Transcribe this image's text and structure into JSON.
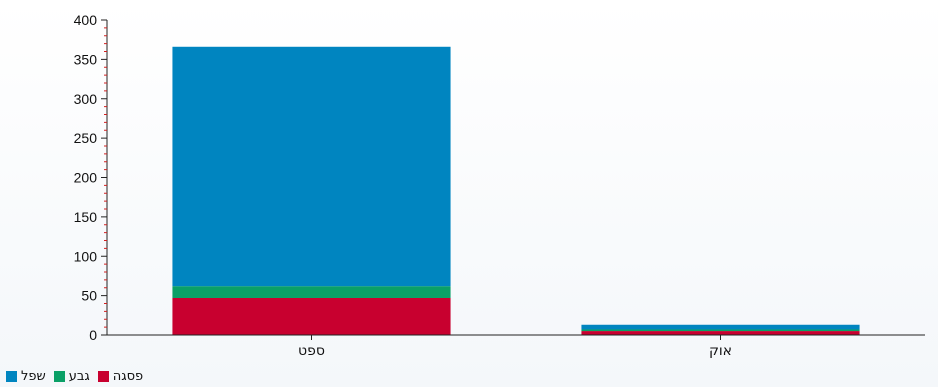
{
  "chart_data": {
    "type": "bar",
    "stacked": true,
    "categories": [
      "ספט",
      "אוק"
    ],
    "series": [
      {
        "name": "פסגה",
        "color": "#c8002f",
        "values": [
          47,
          5
        ]
      },
      {
        "name": "גבע",
        "color": "#0aa067",
        "values": [
          15,
          2
        ]
      },
      {
        "name": "שפל",
        "color": "#0085c0",
        "values": [
          304,
          6
        ]
      }
    ],
    "ylim": [
      0,
      400
    ],
    "yticks": [
      0,
      50,
      100,
      150,
      200,
      250,
      300,
      350,
      400
    ],
    "legend_position": "bottom-left",
    "grid": false
  }
}
